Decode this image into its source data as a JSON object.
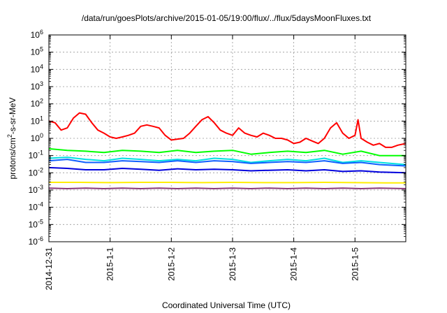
{
  "chart_data": {
    "type": "line",
    "title": "/data/run/goesPlots/archive/2015-01-05/19:00/flux/../flux/5daysMoonFluxes.txt",
    "xlabel": "Coordinated Universal Time (UTC)",
    "ylabel": {
      "pre": "protons/cm",
      "sup": "2",
      "post": "-s-sr-MeV"
    },
    "x_range_days": [
      0,
      5.83
    ],
    "x_ticks": [
      {
        "label": "2014-12-31",
        "day": 0
      },
      {
        "label": "2015-1-1",
        "day": 1
      },
      {
        "label": "2015-1-2",
        "day": 2
      },
      {
        "label": "2015-1-3",
        "day": 3
      },
      {
        "label": "2015-1-4",
        "day": 4
      },
      {
        "label": "2015-1-5",
        "day": 5
      }
    ],
    "y_scale": "log",
    "y_range_exp": [
      -6,
      6
    ],
    "y_ticks": [
      {
        "base": "10",
        "exp": "6",
        "value": 1000000
      },
      {
        "base": "10",
        "exp": "5",
        "value": 100000
      },
      {
        "base": "10",
        "exp": "4",
        "value": 10000
      },
      {
        "base": "10",
        "exp": "3",
        "value": 1000
      },
      {
        "base": "10",
        "exp": "2",
        "value": 100
      },
      {
        "base": "10",
        "exp": "1",
        "value": 10
      },
      {
        "base": "10",
        "exp": "0",
        "value": 1
      },
      {
        "base": "10",
        "exp": "-1",
        "value": 0.1
      },
      {
        "base": "10",
        "exp": "-2",
        "value": 0.01
      },
      {
        "base": "10",
        "exp": "-3",
        "value": 0.001
      },
      {
        "base": "10",
        "exp": "-4",
        "value": 0.0001
      },
      {
        "base": "10",
        "exp": "-5",
        "value": 1e-05
      },
      {
        "base": "10",
        "exp": "-6",
        "value": 1e-06
      }
    ],
    "grid": true,
    "series": [
      {
        "color": "#ff0000",
        "x": [
          0,
          0.1,
          0.2,
          0.3,
          0.4,
          0.5,
          0.6,
          0.7,
          0.8,
          0.9,
          1.0,
          1.1,
          1.2,
          1.3,
          1.4,
          1.5,
          1.6,
          1.7,
          1.8,
          1.9,
          2.0,
          2.1,
          2.2,
          2.3,
          2.4,
          2.5,
          2.6,
          2.7,
          2.8,
          2.9,
          3.0,
          3.1,
          3.2,
          3.3,
          3.4,
          3.5,
          3.6,
          3.7,
          3.8,
          3.9,
          4.0,
          4.1,
          4.2,
          4.3,
          4.4,
          4.5,
          4.6,
          4.7,
          4.8,
          4.9,
          5.0,
          5.05,
          5.1,
          5.2,
          5.3,
          5.4,
          5.5,
          5.6,
          5.7,
          5.83
        ],
        "y": [
          10,
          8,
          3,
          4,
          15,
          30,
          25,
          8,
          3,
          2,
          1.2,
          1,
          1.2,
          1.5,
          2,
          5,
          6,
          5,
          4,
          1.5,
          0.8,
          0.9,
          1,
          2,
          5,
          12,
          18,
          8,
          3,
          2,
          1.5,
          4,
          2,
          1.5,
          1.2,
          2,
          1.5,
          1,
          1,
          0.8,
          0.5,
          0.6,
          1,
          0.7,
          0.5,
          1,
          4,
          8,
          2,
          1,
          1.5,
          12,
          1,
          0.6,
          0.4,
          0.5,
          0.3,
          0.3,
          0.4,
          0.5
        ]
      },
      {
        "color": "#00ff00",
        "x": [
          0,
          0.3,
          0.6,
          0.9,
          1.2,
          1.5,
          1.8,
          2.1,
          2.4,
          2.7,
          3.0,
          3.3,
          3.6,
          3.9,
          4.2,
          4.5,
          4.8,
          5.1,
          5.4,
          5.83
        ],
        "y": [
          0.25,
          0.2,
          0.18,
          0.15,
          0.2,
          0.18,
          0.15,
          0.2,
          0.15,
          0.18,
          0.2,
          0.12,
          0.15,
          0.18,
          0.15,
          0.2,
          0.12,
          0.18,
          0.1,
          0.1
        ]
      },
      {
        "color": "#00e0e0",
        "x": [
          0,
          0.3,
          0.6,
          0.9,
          1.2,
          1.5,
          1.8,
          2.1,
          2.4,
          2.7,
          3.0,
          3.3,
          3.6,
          3.9,
          4.2,
          4.5,
          4.8,
          5.1,
          5.4,
          5.83
        ],
        "y": [
          0.07,
          0.08,
          0.06,
          0.05,
          0.07,
          0.06,
          0.05,
          0.06,
          0.05,
          0.07,
          0.06,
          0.04,
          0.05,
          0.06,
          0.05,
          0.07,
          0.04,
          0.05,
          0.04,
          0.03
        ]
      },
      {
        "color": "#1060ff",
        "x": [
          0,
          0.3,
          0.6,
          0.9,
          1.2,
          1.5,
          1.8,
          2.1,
          2.4,
          2.7,
          3.0,
          3.3,
          3.6,
          3.9,
          4.2,
          4.5,
          4.8,
          5.1,
          5.4,
          5.83
        ],
        "y": [
          0.05,
          0.06,
          0.04,
          0.04,
          0.05,
          0.045,
          0.04,
          0.05,
          0.04,
          0.05,
          0.045,
          0.035,
          0.04,
          0.045,
          0.04,
          0.05,
          0.035,
          0.04,
          0.03,
          0.025
        ]
      },
      {
        "color": "#0000dd",
        "x": [
          0,
          0.3,
          0.6,
          0.9,
          1.2,
          1.5,
          1.8,
          2.1,
          2.4,
          2.7,
          3.0,
          3.3,
          3.6,
          3.9,
          4.2,
          4.5,
          4.8,
          5.1,
          5.4,
          5.83
        ],
        "y": [
          0.02,
          0.018,
          0.015,
          0.015,
          0.018,
          0.016,
          0.014,
          0.017,
          0.015,
          0.016,
          0.015,
          0.013,
          0.014,
          0.015,
          0.013,
          0.015,
          0.012,
          0.013,
          0.011,
          0.01
        ]
      },
      {
        "color": "#ffee00",
        "x": [
          0,
          0.5,
          1.0,
          1.5,
          2.0,
          2.5,
          3.0,
          3.5,
          4.0,
          4.5,
          5.0,
          5.5,
          5.83
        ],
        "y": [
          0.0028,
          0.0028,
          0.0027,
          0.0028,
          0.0028,
          0.0027,
          0.0028,
          0.0027,
          0.0027,
          0.0028,
          0.0027,
          0.0026,
          0.0026
        ]
      },
      {
        "color": "#8b3a7a",
        "x": [
          0,
          0.3,
          0.6,
          0.9,
          1.2,
          1.5,
          1.8,
          2.1,
          2.4,
          2.7,
          3.0,
          3.3,
          3.6,
          3.9,
          4.2,
          4.5,
          4.8,
          5.1,
          5.4,
          5.83
        ],
        "y": [
          0.0013,
          0.0012,
          0.0013,
          0.0012,
          0.0013,
          0.0012,
          0.0013,
          0.0012,
          0.0013,
          0.0012,
          0.0013,
          0.0012,
          0.0013,
          0.0012,
          0.0013,
          0.0012,
          0.0013,
          0.0012,
          0.0013,
          0.0012
        ]
      }
    ]
  }
}
